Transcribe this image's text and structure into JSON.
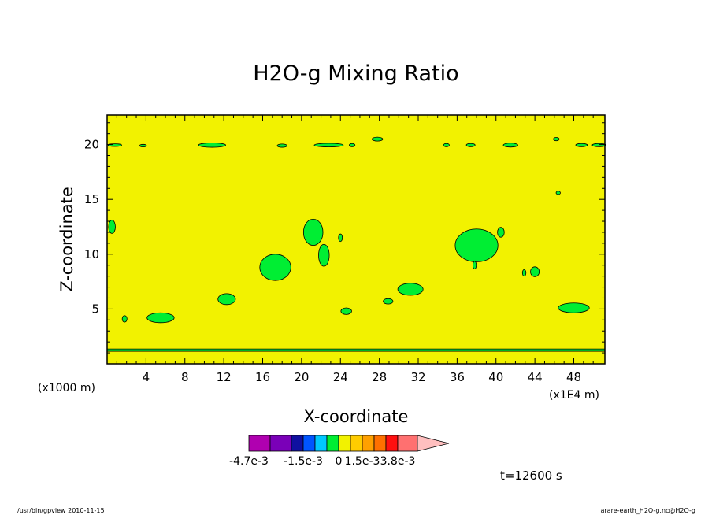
{
  "chart_data": {
    "type": "contour",
    "title": "H2O-g Mixing Ratio",
    "xlabel": "X-coordinate",
    "ylabel": "Z-coordinate",
    "x_scale_note": "(x1E4 m)",
    "y_scale_note": "(x1000 m)",
    "xlim": [
      0,
      51.2
    ],
    "ylim": [
      0,
      22.7
    ],
    "x_ticks": [
      {
        "value": 4,
        "label": "4"
      },
      {
        "value": 8,
        "label": "8"
      },
      {
        "value": 12,
        "label": "12"
      },
      {
        "value": 16,
        "label": "16"
      },
      {
        "value": 20,
        "label": "20"
      },
      {
        "value": 24,
        "label": "24"
      },
      {
        "value": 28,
        "label": "28"
      },
      {
        "value": 32,
        "label": "32"
      },
      {
        "value": 36,
        "label": "36"
      },
      {
        "value": 40,
        "label": "40"
      },
      {
        "value": 44,
        "label": "44"
      },
      {
        "value": 48,
        "label": "48"
      }
    ],
    "y_ticks": [
      {
        "value": 5,
        "label": "5"
      },
      {
        "value": 10,
        "label": "10"
      },
      {
        "value": 15,
        "label": "15"
      },
      {
        "value": 20,
        "label": "20"
      }
    ],
    "background_level_color": "#f2f200",
    "region_color": "#00ee33",
    "grid": false,
    "colorbar": {
      "placement": "bottom",
      "colors": [
        "#b000b0",
        "#7a00b8",
        "#1010a0",
        "#0055ff",
        "#00c8ff",
        "#00ee33",
        "#f2f200",
        "#ffcc00",
        "#ffa000",
        "#ff7000",
        "#ff1010",
        "#ff7070",
        "#ffbfbf"
      ],
      "labels": [
        {
          "text": "-4.7e-3",
          "at_boundary": 0
        },
        {
          "text": "-1.5e-3",
          "at_boundary": 3
        },
        {
          "text": "0",
          "at_boundary": 6
        },
        {
          "text": "1.5e-3",
          "at_boundary": 8
        },
        {
          "text": "3.8e-3",
          "at_boundary": 11
        }
      ]
    },
    "time_label": "t=12600 s",
    "regions": [
      {
        "name": "cloud-upper-left-edge",
        "x": 0.8,
        "z": 19.95,
        "rx": 0.7,
        "rz": 0.12
      },
      {
        "name": "cloud-upper-4",
        "x": 3.7,
        "z": 19.9,
        "rx": 0.35,
        "rz": 0.12
      },
      {
        "name": "cloud-upper-11",
        "x": 10.8,
        "z": 19.95,
        "rx": 1.4,
        "rz": 0.2
      },
      {
        "name": "cloud-upper-18",
        "x": 18.0,
        "z": 19.9,
        "rx": 0.5,
        "rz": 0.15
      },
      {
        "name": "cloud-upper-23",
        "x": 22.8,
        "z": 19.95,
        "rx": 1.5,
        "rz": 0.17
      },
      {
        "name": "cloud-upper-25",
        "x": 25.2,
        "z": 19.95,
        "rx": 0.3,
        "rz": 0.15
      },
      {
        "name": "cloud-upper-28",
        "x": 27.8,
        "z": 20.5,
        "rx": 0.55,
        "rz": 0.18
      },
      {
        "name": "cloud-upper-35",
        "x": 34.9,
        "z": 19.95,
        "rx": 0.3,
        "rz": 0.15
      },
      {
        "name": "cloud-upper-37",
        "x": 37.4,
        "z": 19.95,
        "rx": 0.45,
        "rz": 0.15
      },
      {
        "name": "cloud-upper-41",
        "x": 41.5,
        "z": 19.95,
        "rx": 0.75,
        "rz": 0.18
      },
      {
        "name": "cloud-upper-46",
        "x": 46.2,
        "z": 20.5,
        "rx": 0.3,
        "rz": 0.15
      },
      {
        "name": "cloud-upper-48",
        "x": 48.8,
        "z": 19.95,
        "rx": 0.6,
        "rz": 0.15
      },
      {
        "name": "cloud-upper-right-edge",
        "x": 50.6,
        "z": 19.95,
        "rx": 0.7,
        "rz": 0.15
      },
      {
        "name": "cloud-15-46",
        "x": 46.4,
        "z": 15.6,
        "rx": 0.22,
        "rz": 0.15
      },
      {
        "name": "cloud-12-left",
        "x": 0.5,
        "z": 12.5,
        "rx": 0.35,
        "rz": 0.6
      },
      {
        "name": "cloud-12-21",
        "x": 21.2,
        "z": 12.0,
        "rx": 1.0,
        "rz": 1.2
      },
      {
        "name": "cloud-11-24",
        "x": 24.0,
        "z": 11.5,
        "rx": 0.2,
        "rz": 0.35
      },
      {
        "name": "cloud-10-22",
        "x": 22.3,
        "z": 9.9,
        "rx": 0.55,
        "rz": 1.0
      },
      {
        "name": "cloud-9-17",
        "x": 17.3,
        "z": 8.8,
        "rx": 1.6,
        "rz": 1.2
      },
      {
        "name": "cloud-11-38",
        "x": 38.0,
        "z": 10.8,
        "rx": 2.2,
        "rz": 1.5
      },
      {
        "name": "cloud-12-40",
        "x": 40.5,
        "z": 12.0,
        "rx": 0.35,
        "rz": 0.45
      },
      {
        "name": "cloud-9-37",
        "x": 37.8,
        "z": 9.0,
        "rx": 0.18,
        "rz": 0.35
      },
      {
        "name": "cloud-8-44",
        "x": 44.0,
        "z": 8.4,
        "rx": 0.45,
        "rz": 0.45
      },
      {
        "name": "cloud-8-43",
        "x": 42.9,
        "z": 8.3,
        "rx": 0.18,
        "rz": 0.3
      },
      {
        "name": "cloud-7-31",
        "x": 31.2,
        "z": 6.8,
        "rx": 1.3,
        "rz": 0.55
      },
      {
        "name": "cloud-6-12",
        "x": 12.3,
        "z": 5.9,
        "rx": 0.9,
        "rz": 0.5
      },
      {
        "name": "cloud-6-29",
        "x": 28.9,
        "z": 5.7,
        "rx": 0.5,
        "rz": 0.25
      },
      {
        "name": "cloud-5-24",
        "x": 24.6,
        "z": 4.8,
        "rx": 0.55,
        "rz": 0.3
      },
      {
        "name": "cloud-5-48",
        "x": 48.0,
        "z": 5.1,
        "rx": 1.6,
        "rz": 0.45
      },
      {
        "name": "cloud-4-5",
        "x": 5.5,
        "z": 4.2,
        "rx": 1.4,
        "rz": 0.45
      },
      {
        "name": "cloud-4-2",
        "x": 1.8,
        "z": 4.1,
        "rx": 0.25,
        "rz": 0.3
      }
    ],
    "surface_line_z": 1.25
  },
  "footer": {
    "left": "/usr/bin/gpview  2010-11-15",
    "right": "arare-earth_H2O-g.nc@H2O-g"
  }
}
